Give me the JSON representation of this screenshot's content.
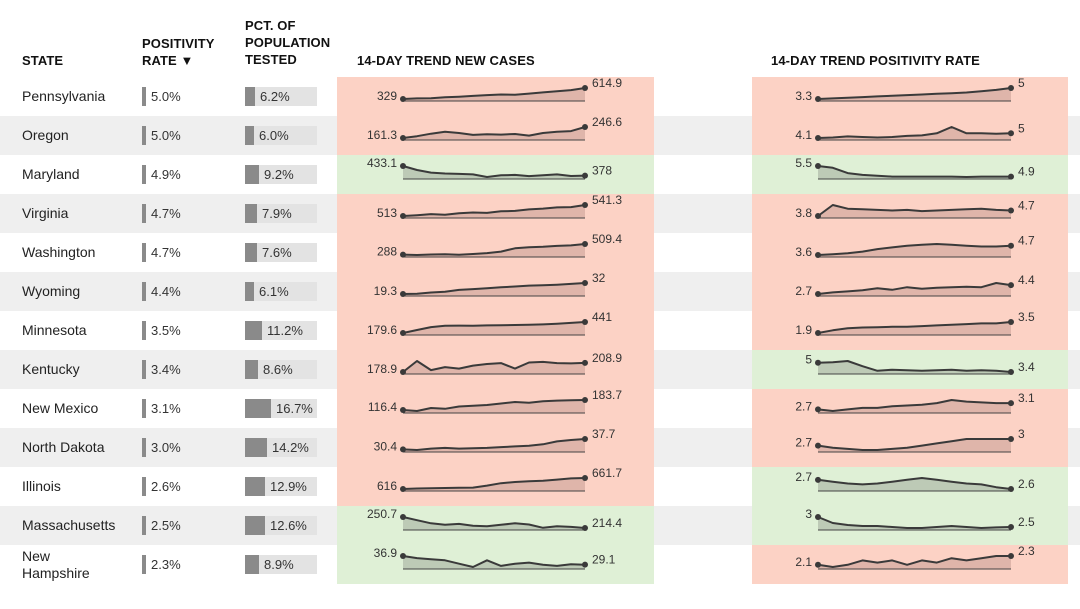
{
  "headers": {
    "state": "STATE",
    "positivity": [
      "POSITIVITY",
      "RATE ▼"
    ],
    "pct_tested": [
      "PCT. OF",
      "POPULATION",
      "TESTED"
    ],
    "cases_trend": "14-DAY TREND NEW CASES",
    "positivity_trend": "14-DAY TREND POSITIVITY RATE"
  },
  "colors": {
    "increase": "#fcd2c5",
    "decrease": "#dff0d6",
    "bar": "#8a8a8a",
    "bar_bg": "#e3e3e3",
    "area_up": "#d9b0a5",
    "area_down": "#b7c3b0",
    "line": "#3a3a3a"
  },
  "chart_data": {
    "type": "table",
    "columns": [
      "State",
      "Positivity rate (%)",
      "Pct. of population tested (%)",
      "14-day trend new cases",
      "14-day trend positivity rate"
    ],
    "rows": [
      {
        "state": "Pennsylvania",
        "positivity": "5.0%",
        "positivity_value": 5.0,
        "tested": "6.2%",
        "tested_value": 6.2,
        "cases": {
          "start": "329",
          "end": "614.9",
          "direction": "up",
          "values": [
            329,
            345,
            350,
            372,
            390,
            410,
            430,
            445,
            440,
            470,
            500,
            530,
            560,
            614.9
          ]
        },
        "rate": {
          "start": "3.3",
          "end": "5",
          "direction": "up",
          "values": [
            3.3,
            3.4,
            3.5,
            3.6,
            3.7,
            3.8,
            3.9,
            4.0,
            4.1,
            4.2,
            4.3,
            4.5,
            4.7,
            5
          ]
        }
      },
      {
        "state": "Oregon",
        "positivity": "5.0%",
        "positivity_value": 5.0,
        "tested": "6.0%",
        "tested_value": 6.0,
        "cases": {
          "start": "161.3",
          "end": "246.6",
          "direction": "up",
          "values": [
            161.3,
            175,
            195,
            210,
            200,
            185,
            190,
            188,
            192,
            180,
            200,
            210,
            215,
            246.6
          ]
        },
        "rate": {
          "start": "4.1",
          "end": "5",
          "direction": "up",
          "values": [
            4.1,
            4.2,
            4.4,
            4.3,
            4.2,
            4.3,
            4.5,
            4.6,
            5.0,
            6.2,
            5.0,
            5.0,
            4.9,
            5
          ]
        }
      },
      {
        "state": "Maryland",
        "positivity": "4.9%",
        "positivity_value": 4.9,
        "tested": "9.2%",
        "tested_value": 9.2,
        "cases": {
          "start": "433.1",
          "end": "378",
          "direction": "down",
          "values": [
            433.1,
            410,
            395,
            390,
            388,
            385,
            370,
            380,
            382,
            375,
            380,
            385,
            376,
            378
          ]
        },
        "rate": {
          "start": "5.5",
          "end": "4.9",
          "direction": "down",
          "values": [
            5.5,
            5.4,
            5.1,
            5.0,
            4.95,
            4.9,
            4.9,
            4.9,
            4.9,
            4.9,
            4.88,
            4.9,
            4.9,
            4.9
          ]
        }
      },
      {
        "state": "Virginia",
        "positivity": "4.7%",
        "positivity_value": 4.7,
        "tested": "7.9%",
        "tested_value": 7.9,
        "cases": {
          "start": "513",
          "end": "541.3",
          "direction": "up",
          "values": [
            513,
            515,
            518,
            516,
            520,
            522,
            521,
            525,
            526,
            530,
            532,
            535,
            536,
            541.3
          ]
        },
        "rate": {
          "start": "3.8",
          "end": "4.7",
          "direction": "up",
          "values": [
            3.8,
            5.6,
            5.0,
            4.9,
            4.8,
            4.7,
            4.8,
            4.6,
            4.7,
            4.8,
            4.9,
            5.0,
            4.8,
            4.7
          ]
        }
      },
      {
        "state": "Washington",
        "positivity": "4.7%",
        "positivity_value": 4.7,
        "tested": "7.6%",
        "tested_value": 7.6,
        "cases": {
          "start": "288",
          "end": "509.4",
          "direction": "up",
          "values": [
            288,
            280,
            290,
            295,
            285,
            300,
            320,
            350,
            420,
            440,
            450,
            470,
            480,
            509.4
          ]
        },
        "rate": {
          "start": "3.6",
          "end": "4.7",
          "direction": "up",
          "values": [
            3.6,
            3.7,
            3.8,
            4.0,
            4.3,
            4.5,
            4.7,
            4.8,
            4.9,
            4.8,
            4.7,
            4.6,
            4.6,
            4.7
          ]
        }
      },
      {
        "state": "Wyoming",
        "positivity": "4.4%",
        "positivity_value": 4.4,
        "tested": "6.1%",
        "tested_value": 6.1,
        "cases": {
          "start": "19.3",
          "end": "32",
          "direction": "up",
          "values": [
            19.3,
            19.5,
            21,
            22,
            24,
            25,
            26,
            27,
            28,
            29,
            29.5,
            30,
            31,
            32
          ]
        },
        "rate": {
          "start": "2.7",
          "end": "4.4",
          "direction": "up",
          "values": [
            2.7,
            3.0,
            3.2,
            3.4,
            3.8,
            3.5,
            4.0,
            3.7,
            3.9,
            4.0,
            4.1,
            4.0,
            4.8,
            4.4
          ]
        }
      },
      {
        "state": "Minnesota",
        "positivity": "3.5%",
        "positivity_value": 3.5,
        "tested": "11.2%",
        "tested_value": 11.2,
        "cases": {
          "start": "179.6",
          "end": "441",
          "direction": "up",
          "values": [
            179.6,
            250,
            320,
            350,
            355,
            352,
            360,
            362,
            370,
            375,
            385,
            400,
            420,
            441
          ]
        },
        "rate": {
          "start": "1.9",
          "end": "3.5",
          "direction": "up",
          "values": [
            1.9,
            2.3,
            2.6,
            2.7,
            2.75,
            2.8,
            2.8,
            2.9,
            3.0,
            3.1,
            3.2,
            3.3,
            3.3,
            3.5
          ]
        }
      },
      {
        "state": "Kentucky",
        "positivity": "3.4%",
        "positivity_value": 3.4,
        "tested": "8.6%",
        "tested_value": 8.6,
        "cases": {
          "start": "178.9",
          "end": "208.9",
          "direction": "up",
          "values": [
            178.9,
            215,
            185,
            195,
            190,
            200,
            205,
            208,
            190,
            210,
            212,
            208,
            207,
            208.9
          ]
        },
        "rate": {
          "start": "5",
          "end": "3.4",
          "direction": "down",
          "values": [
            5,
            5.1,
            5.3,
            4.4,
            3.6,
            3.8,
            3.7,
            3.6,
            3.7,
            3.8,
            3.6,
            3.7,
            3.6,
            3.4
          ]
        }
      },
      {
        "state": "New Mexico",
        "positivity": "3.1%",
        "positivity_value": 3.1,
        "tested": "16.7%",
        "tested_value": 16.7,
        "cases": {
          "start": "116.4",
          "end": "183.7",
          "direction": "up",
          "values": [
            116.4,
            110,
            130,
            125,
            140,
            145,
            150,
            160,
            170,
            165,
            175,
            180,
            182,
            183.7
          ]
        },
        "rate": {
          "start": "2.7",
          "end": "3.1",
          "direction": "up",
          "values": [
            2.7,
            2.6,
            2.7,
            2.8,
            2.8,
            2.9,
            2.95,
            3.0,
            3.1,
            3.3,
            3.2,
            3.15,
            3.1,
            3.1
          ]
        }
      },
      {
        "state": "North Dakota",
        "positivity": "3.0%",
        "positivity_value": 3.0,
        "tested": "14.2%",
        "tested_value": 14.2,
        "cases": {
          "start": "30.4",
          "end": "37.7",
          "direction": "up",
          "values": [
            30.4,
            30,
            31,
            31.5,
            31,
            31.2,
            31.5,
            32,
            32.5,
            33,
            34,
            36,
            37,
            37.7
          ]
        },
        "rate": {
          "start": "2.7",
          "end": "3",
          "direction": "up",
          "values": [
            2.7,
            2.6,
            2.55,
            2.5,
            2.5,
            2.55,
            2.6,
            2.7,
            2.8,
            2.9,
            3.0,
            3.0,
            3.0,
            3
          ]
        }
      },
      {
        "state": "Illinois",
        "positivity": "2.6%",
        "positivity_value": 2.6,
        "tested": "12.9%",
        "tested_value": 12.9,
        "cases": {
          "start": "616",
          "end": "661.7",
          "direction": "up",
          "values": [
            616,
            618,
            619,
            620,
            621,
            622,
            630,
            640,
            645,
            648,
            650,
            655,
            660,
            661.7
          ]
        },
        "rate": {
          "start": "2.7",
          "end": "2.6",
          "direction": "down",
          "values": [
            2.7,
            2.68,
            2.66,
            2.65,
            2.66,
            2.68,
            2.7,
            2.72,
            2.7,
            2.68,
            2.66,
            2.65,
            2.62,
            2.6
          ]
        }
      },
      {
        "state": "Massachusetts",
        "positivity": "2.5%",
        "positivity_value": 2.5,
        "tested": "12.6%",
        "tested_value": 12.6,
        "cases": {
          "start": "250.7",
          "end": "214.4",
          "direction": "down",
          "values": [
            250.7,
            240,
            230,
            225,
            228,
            222,
            220,
            225,
            230,
            226,
            215,
            220,
            218,
            214.4
          ]
        },
        "rate": {
          "start": "3",
          "end": "2.5",
          "direction": "down",
          "values": [
            3,
            2.7,
            2.6,
            2.55,
            2.55,
            2.5,
            2.45,
            2.45,
            2.5,
            2.55,
            2.5,
            2.45,
            2.48,
            2.5
          ]
        }
      },
      {
        "state": "New Hampshire",
        "state_lines": [
          "New",
          "Hampshire"
        ],
        "positivity": "2.3%",
        "positivity_value": 2.3,
        "tested": "8.9%",
        "tested_value": 8.9,
        "cases": {
          "start": "36.9",
          "end": "29.1",
          "direction": "down",
          "values": [
            36.9,
            35,
            34,
            33,
            30,
            27,
            33,
            28,
            30,
            31,
            29,
            28,
            29.5,
            29.1
          ]
        },
        "rate": {
          "start": "2.1",
          "end": "2.3",
          "direction": "up",
          "values": [
            2.1,
            2.05,
            2.1,
            2.2,
            2.15,
            2.2,
            2.1,
            2.2,
            2.15,
            2.25,
            2.2,
            2.25,
            2.3,
            2.3
          ]
        }
      }
    ]
  }
}
